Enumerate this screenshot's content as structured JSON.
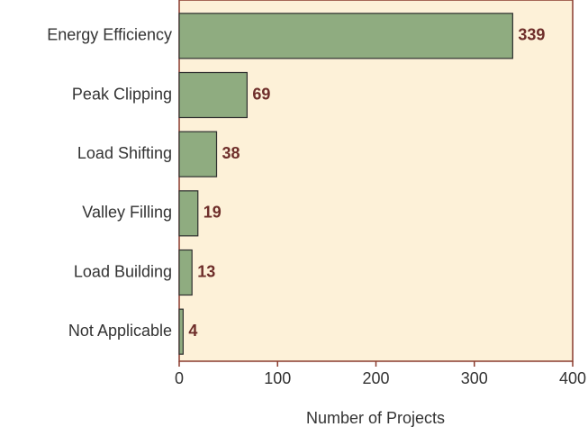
{
  "chart_data": {
    "type": "barh",
    "categories": [
      "Energy Efficiency",
      "Peak Clipping",
      "Load Shifting",
      "Valley Filling",
      "Load Building",
      "Not Applicable"
    ],
    "values": [
      339,
      69,
      38,
      19,
      13,
      4
    ],
    "color": "#8fac80",
    "xlabel": "Number of Projects",
    "xlim": [
      0,
      400
    ],
    "xticks": [
      0,
      100,
      200,
      300,
      400
    ]
  }
}
